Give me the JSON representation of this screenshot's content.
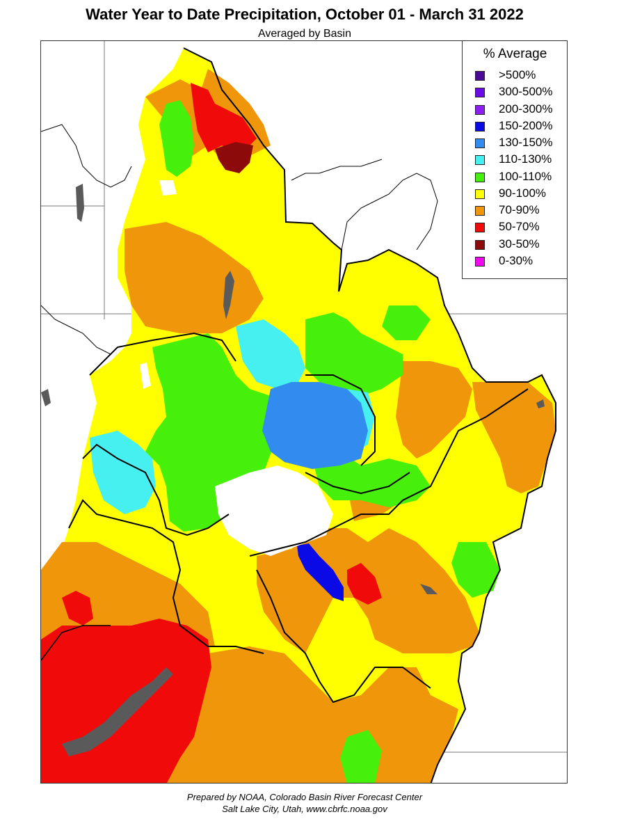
{
  "header": {
    "title": "Water Year to Date Precipitation, October 01  - March 31 2022",
    "subtitle": "Averaged by Basin"
  },
  "legend": {
    "title": "% Average",
    "items": [
      {
        "label": ">500%",
        "color": "#4b0a96"
      },
      {
        "label": "300-500%",
        "color": "#6a0ae6"
      },
      {
        "label": "200-300%",
        "color": "#8c1ef0"
      },
      {
        "label": "150-200%",
        "color": "#0a0ae6"
      },
      {
        "label": "130-150%",
        "color": "#328cf0"
      },
      {
        "label": "110-130%",
        "color": "#46f0f0"
      },
      {
        "label": "100-110%",
        "color": "#46f00a"
      },
      {
        "label": "90-100%",
        "color": "#ffff00"
      },
      {
        "label": "70-90%",
        "color": "#f0960a"
      },
      {
        "label": "50-70%",
        "color": "#f00a0a"
      },
      {
        "label": "30-50%",
        "color": "#8c0a0a"
      },
      {
        "label": "0-30%",
        "color": "#f00af0"
      }
    ]
  },
  "credit": {
    "line1": "Prepared by NOAA, Colorado Basin River Forecast Center",
    "line2": "Salt Lake City, Utah, www.cbrfc.noaa.gov"
  }
}
